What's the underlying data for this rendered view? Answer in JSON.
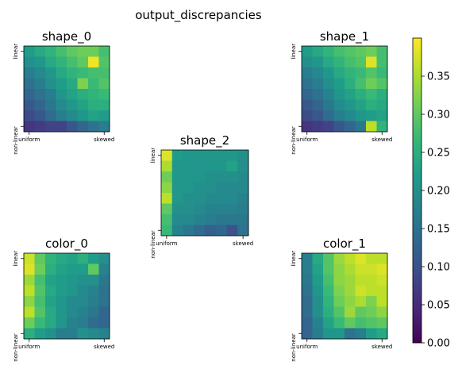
{
  "suptitle": "output_discrepancies",
  "chart_data": {
    "type": "heatmap",
    "x_tick_labels": [
      "uniform",
      "skewed"
    ],
    "y_tick_labels": [
      "linear",
      "non-linear"
    ],
    "colormap": "viridis",
    "vmin": 0.0,
    "vmax": 0.4,
    "colorbar_ticks": [
      "0.00",
      "0.05",
      "0.10",
      "0.15",
      "0.20",
      "0.25",
      "0.30",
      "0.35"
    ],
    "colorbar_tick_values": [
      0.0,
      0.05,
      0.1,
      0.15,
      0.2,
      0.25,
      0.3,
      0.35
    ],
    "panels": [
      {
        "title": "shape_0",
        "values": [
          [
            0.22,
            0.24,
            0.26,
            0.28,
            0.3,
            0.31,
            0.31,
            0.28
          ],
          [
            0.2,
            0.21,
            0.24,
            0.26,
            0.28,
            0.3,
            0.39,
            0.29
          ],
          [
            0.17,
            0.19,
            0.21,
            0.24,
            0.26,
            0.27,
            0.28,
            0.28
          ],
          [
            0.15,
            0.17,
            0.2,
            0.22,
            0.24,
            0.32,
            0.27,
            0.29
          ],
          [
            0.13,
            0.15,
            0.17,
            0.21,
            0.23,
            0.25,
            0.26,
            0.27
          ],
          [
            0.11,
            0.13,
            0.16,
            0.19,
            0.21,
            0.23,
            0.25,
            0.25
          ],
          [
            0.09,
            0.11,
            0.14,
            0.17,
            0.19,
            0.21,
            0.23,
            0.22
          ],
          [
            0.06,
            0.07,
            0.08,
            0.08,
            0.11,
            0.13,
            0.15,
            0.17
          ]
        ]
      },
      {
        "title": "shape_1",
        "values": [
          [
            0.22,
            0.24,
            0.26,
            0.28,
            0.29,
            0.3,
            0.31,
            0.28
          ],
          [
            0.2,
            0.21,
            0.24,
            0.26,
            0.28,
            0.29,
            0.38,
            0.28
          ],
          [
            0.17,
            0.19,
            0.21,
            0.24,
            0.26,
            0.27,
            0.29,
            0.27
          ],
          [
            0.15,
            0.17,
            0.2,
            0.22,
            0.25,
            0.28,
            0.31,
            0.29
          ],
          [
            0.13,
            0.15,
            0.18,
            0.21,
            0.23,
            0.25,
            0.27,
            0.25
          ],
          [
            0.11,
            0.13,
            0.16,
            0.19,
            0.21,
            0.23,
            0.25,
            0.24
          ],
          [
            0.09,
            0.11,
            0.14,
            0.17,
            0.19,
            0.21,
            0.22,
            0.23
          ],
          [
            0.06,
            0.07,
            0.08,
            0.11,
            0.13,
            0.16,
            0.36,
            0.26
          ]
        ]
      },
      {
        "title": "shape_2",
        "values": [
          [
            0.38,
            0.22,
            0.21,
            0.21,
            0.21,
            0.21,
            0.21,
            0.2
          ],
          [
            0.35,
            0.21,
            0.21,
            0.21,
            0.21,
            0.21,
            0.23,
            0.2
          ],
          [
            0.31,
            0.21,
            0.21,
            0.21,
            0.2,
            0.2,
            0.2,
            0.19
          ],
          [
            0.33,
            0.21,
            0.21,
            0.2,
            0.2,
            0.19,
            0.19,
            0.19
          ],
          [
            0.36,
            0.21,
            0.2,
            0.2,
            0.19,
            0.19,
            0.19,
            0.18
          ],
          [
            0.3,
            0.2,
            0.2,
            0.19,
            0.18,
            0.18,
            0.18,
            0.17
          ],
          [
            0.28,
            0.19,
            0.19,
            0.18,
            0.17,
            0.16,
            0.16,
            0.16
          ],
          [
            0.27,
            0.18,
            0.16,
            0.14,
            0.12,
            0.13,
            0.1,
            0.15
          ]
        ]
      },
      {
        "title": "color_0",
        "values": [
          [
            0.37,
            0.3,
            0.26,
            0.24,
            0.23,
            0.25,
            0.22,
            0.2
          ],
          [
            0.38,
            0.31,
            0.25,
            0.23,
            0.22,
            0.22,
            0.3,
            0.18
          ],
          [
            0.34,
            0.28,
            0.23,
            0.22,
            0.21,
            0.2,
            0.2,
            0.16
          ],
          [
            0.36,
            0.29,
            0.24,
            0.22,
            0.21,
            0.19,
            0.18,
            0.15
          ],
          [
            0.33,
            0.28,
            0.23,
            0.21,
            0.19,
            0.19,
            0.17,
            0.15
          ],
          [
            0.36,
            0.29,
            0.24,
            0.21,
            0.19,
            0.18,
            0.16,
            0.13
          ],
          [
            0.31,
            0.27,
            0.24,
            0.21,
            0.18,
            0.17,
            0.14,
            0.13
          ],
          [
            0.25,
            0.22,
            0.2,
            0.17,
            0.17,
            0.2,
            0.19,
            0.18
          ]
        ]
      },
      {
        "title": "color_1",
        "values": [
          [
            0.17,
            0.24,
            0.29,
            0.34,
            0.36,
            0.38,
            0.36,
            0.36
          ],
          [
            0.17,
            0.23,
            0.29,
            0.33,
            0.35,
            0.37,
            0.37,
            0.38
          ],
          [
            0.16,
            0.22,
            0.28,
            0.33,
            0.34,
            0.36,
            0.36,
            0.37
          ],
          [
            0.15,
            0.21,
            0.27,
            0.32,
            0.34,
            0.37,
            0.36,
            0.36
          ],
          [
            0.14,
            0.2,
            0.26,
            0.31,
            0.33,
            0.35,
            0.32,
            0.36
          ],
          [
            0.14,
            0.2,
            0.25,
            0.29,
            0.34,
            0.3,
            0.31,
            0.33
          ],
          [
            0.13,
            0.18,
            0.23,
            0.27,
            0.3,
            0.28,
            0.29,
            0.3
          ],
          [
            0.13,
            0.17,
            0.21,
            0.21,
            0.15,
            0.17,
            0.22,
            0.24
          ]
        ]
      }
    ]
  }
}
